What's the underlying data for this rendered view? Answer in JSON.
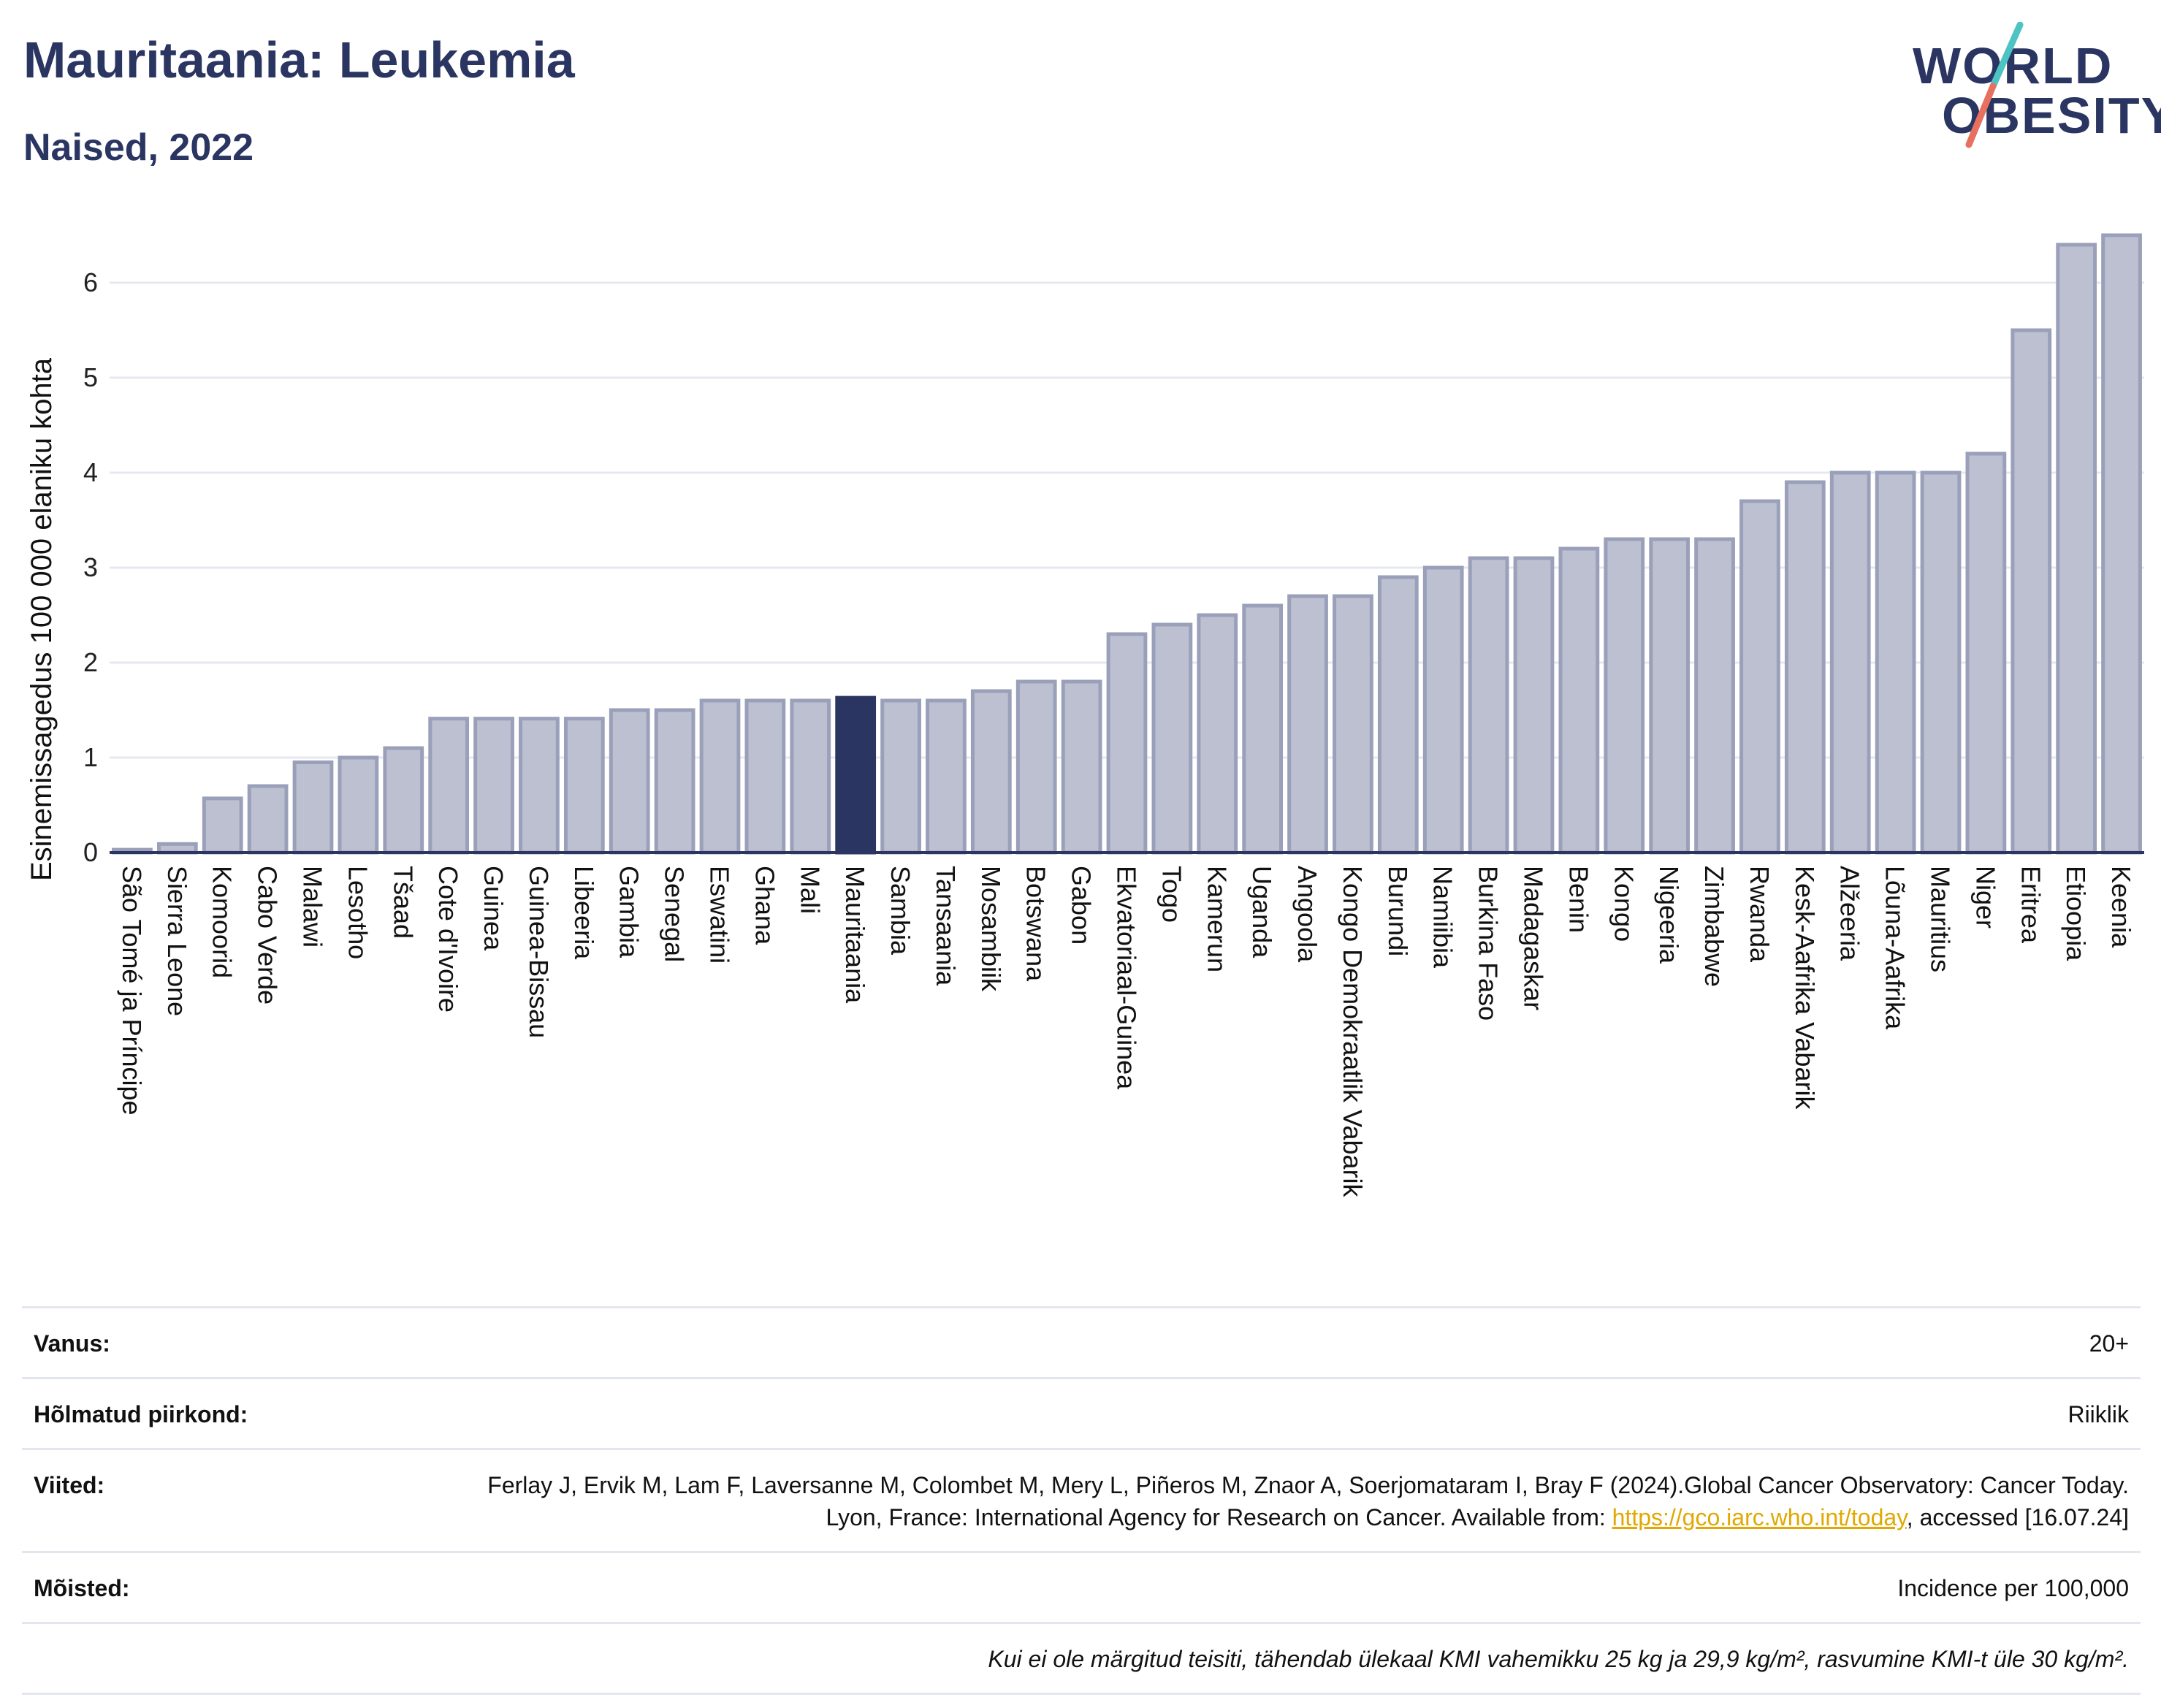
{
  "header": {
    "title": "Mauritaania: Leukemia",
    "subtitle": "Naised, 2022"
  },
  "logo": {
    "line1": "WORLD",
    "line2": "OBESITY",
    "slash_colors": [
      "#4dc3c3",
      "#e8705f"
    ]
  },
  "colors": {
    "bar": "#bcc0d0",
    "bar_border": "#9aa0ba",
    "highlight": "#2b3562",
    "text": "#2b3562"
  },
  "chart_data": {
    "type": "bar",
    "ylabel": "Esinemissagedus 100 000 elaniku kohta",
    "xlabel": "",
    "ylim": [
      0,
      6.6
    ],
    "yticks": [
      0,
      1,
      2,
      3,
      4,
      5,
      6
    ],
    "grid": true,
    "highlight": "Mauritaania",
    "categories": [
      "São Tomé ja Príncipe",
      "Sierra Leone",
      "Komoorid",
      "Cabo Verde",
      "Malawi",
      "Lesotho",
      "Tšaad",
      "Cote d'Ivoire",
      "Guinea",
      "Guinea-Bissau",
      "Libeeria",
      "Gambia",
      "Senegal",
      "Eswatini",
      "Ghana",
      "Mali",
      "Mauritaania",
      "Sambia",
      "Tansaania",
      "Mosambiik",
      "Botswana",
      "Gabon",
      "Ekvatoriaal-Guinea",
      "Togo",
      "Kamerun",
      "Uganda",
      "Angoola",
      "Kongo Demokraatlik Vabarik",
      "Burundi",
      "Namiibia",
      "Burkina Faso",
      "Madagaskar",
      "Benin",
      "Kongo",
      "Nigeeria",
      "Zimbabwe",
      "Rwanda",
      "Kesk-Aafrika Vabarik",
      "Alžeeria",
      "Lõuna-Aafrika",
      "Mauritius",
      "Niger",
      "Eritrea",
      "Etioopia",
      "Keenia"
    ],
    "values": [
      0.03,
      0.09,
      0.57,
      0.7,
      0.95,
      1.0,
      1.1,
      1.41,
      1.41,
      1.41,
      1.41,
      1.5,
      1.5,
      1.6,
      1.6,
      1.6,
      1.63,
      1.6,
      1.6,
      1.7,
      1.8,
      1.8,
      2.3,
      2.4,
      2.5,
      2.6,
      2.7,
      2.7,
      2.9,
      3.0,
      3.1,
      3.1,
      3.2,
      3.3,
      3.3,
      3.3,
      3.7,
      3.9,
      4.0,
      4.0,
      4.0,
      4.2,
      5.5,
      6.4,
      6.5
    ]
  },
  "info": {
    "rows": [
      {
        "label": "Vanus:",
        "value": "20+"
      },
      {
        "label": "Hõlmatud piirkond:",
        "value": "Riiklik"
      },
      {
        "label": "Viited:",
        "value_pre": "Ferlay J, Ervik M, Lam F, Laversanne M, Colombet M, Mery L, Piñeros M, Znaor A, Soerjomataram I, Bray F (2024).Global Cancer Observatory: Cancer Today. Lyon, France: International Agency for Research on Cancer. Available from: ",
        "link": "https://gco.iarc.who.int/today",
        "value_post": ", accessed [16.07.24]"
      },
      {
        "label": "Mõisted:",
        "value": "Incidence per 100,000"
      }
    ],
    "note": "Kui ei ole märgitud teisiti, tähendab ülekaal KMI vahemikku 25 kg ja 29,9 kg/m², rasvumine KMI-t üle 30 kg/m²."
  }
}
